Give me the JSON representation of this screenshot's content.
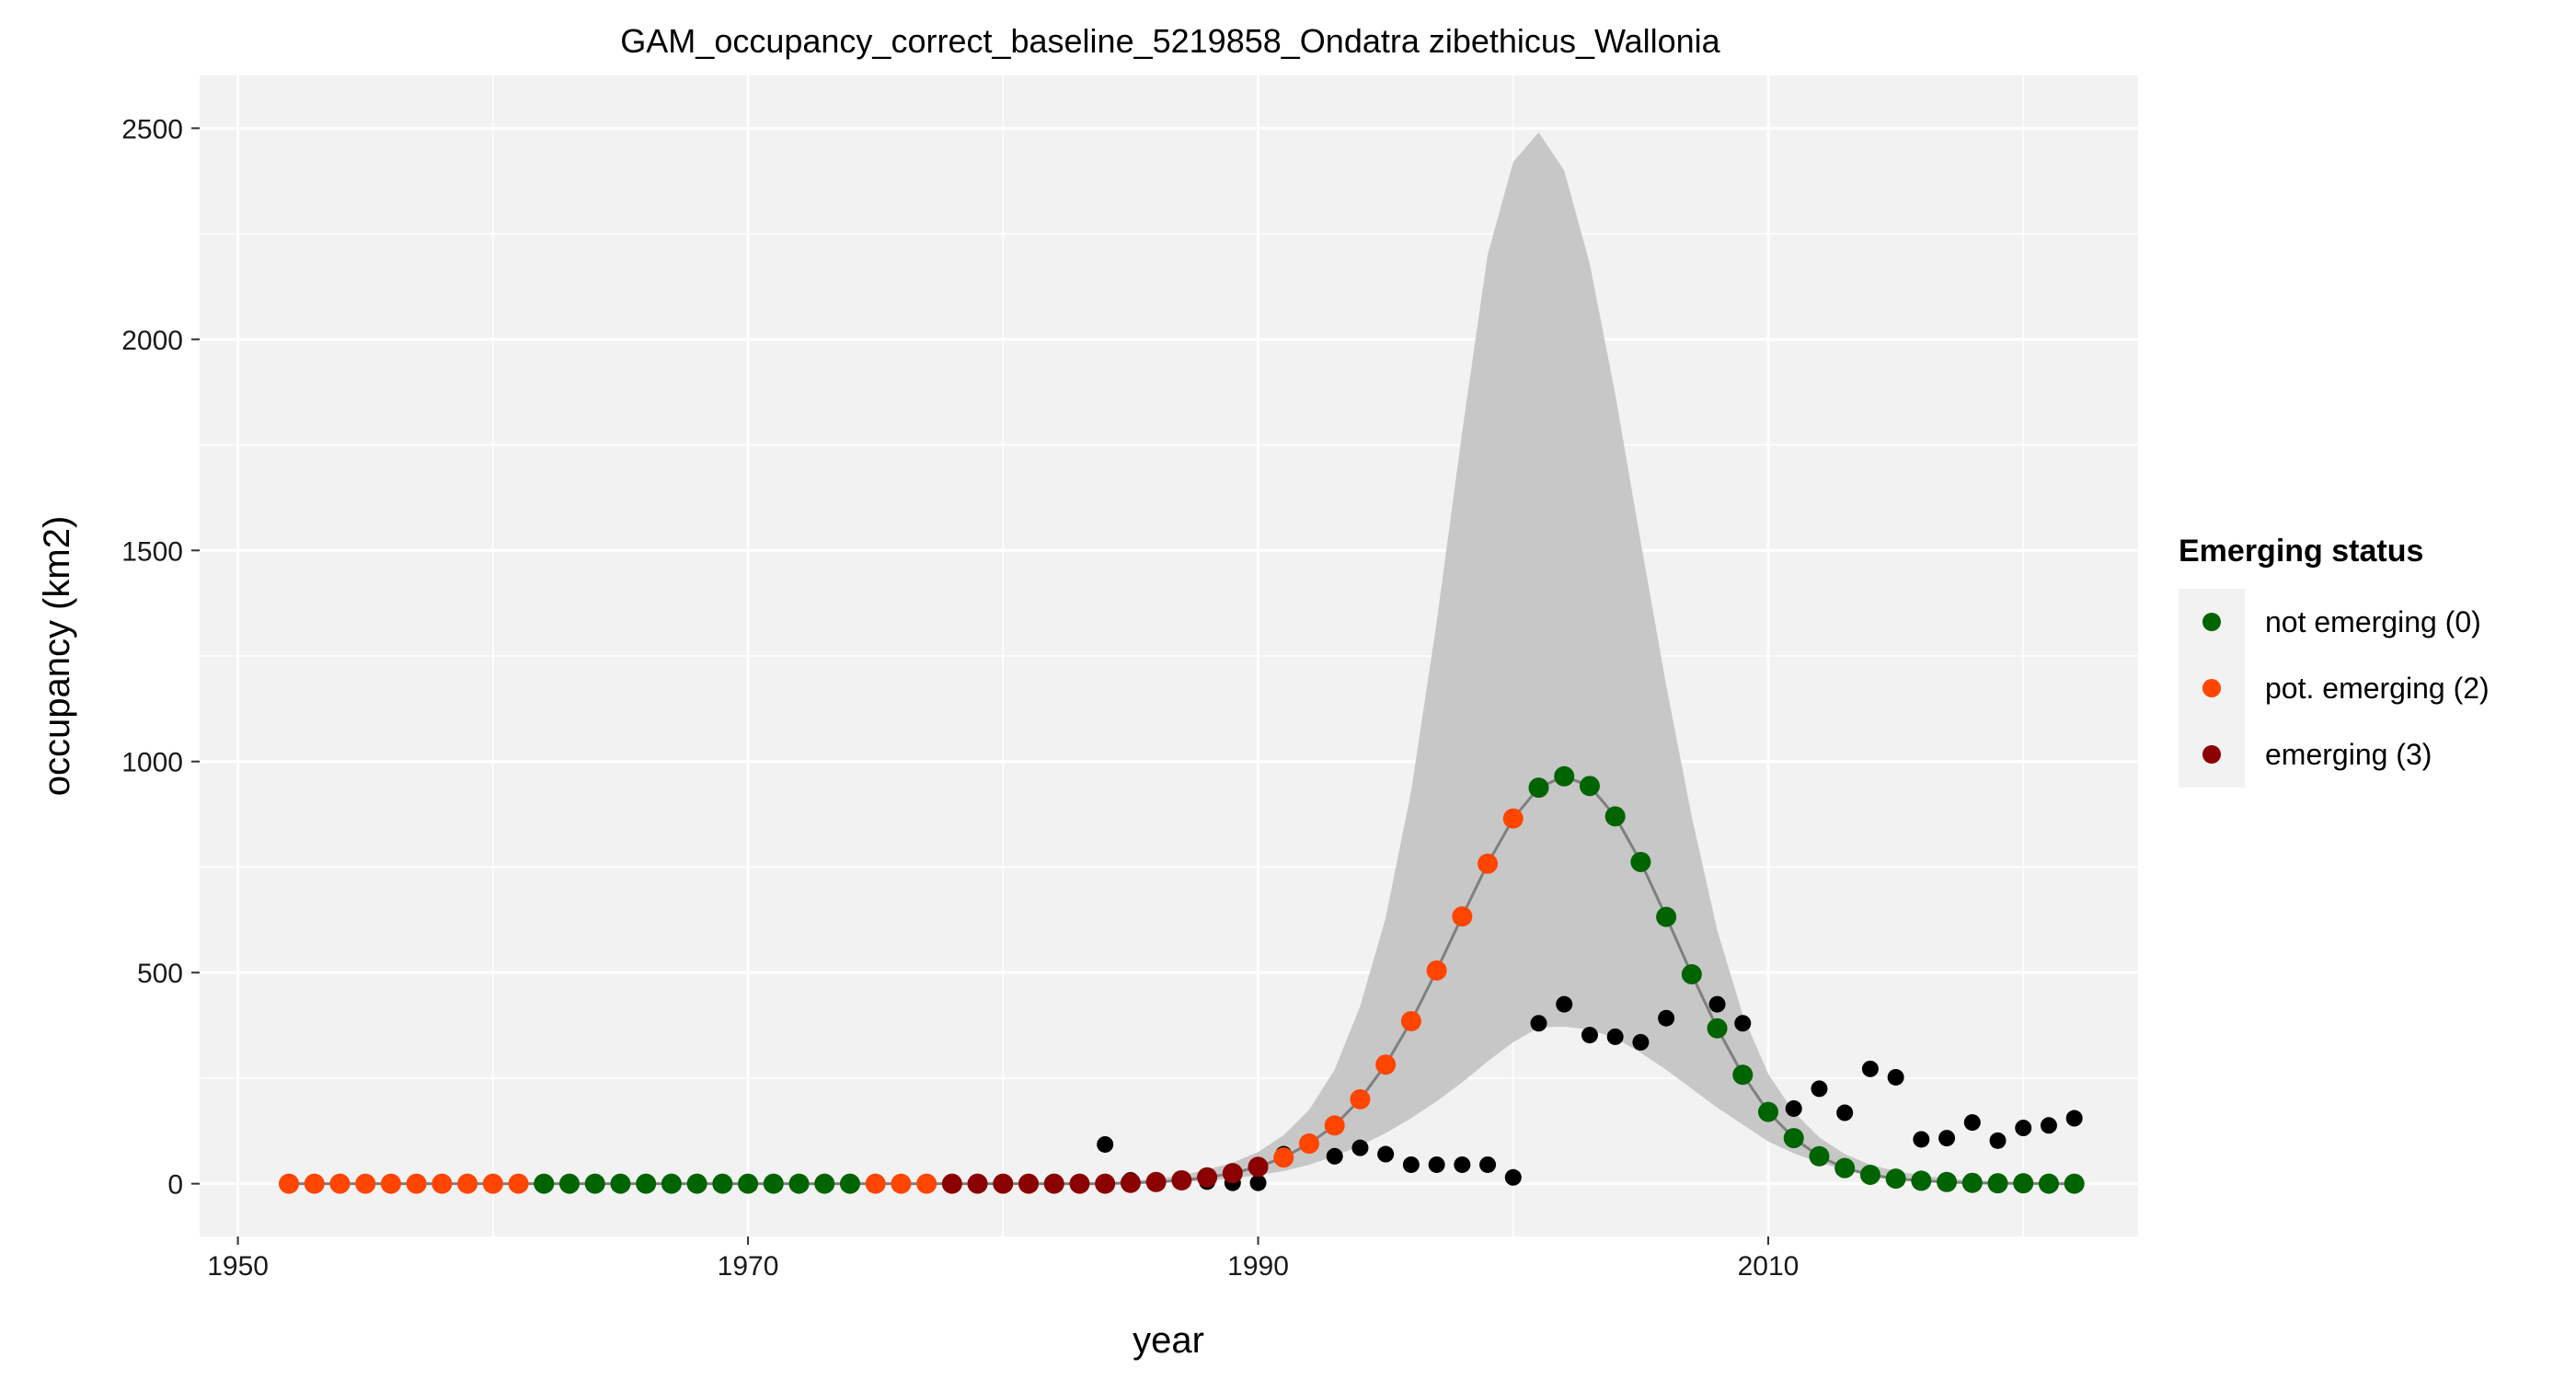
{
  "chart_data": {
    "type": "scatter",
    "title": "GAM_occupancy_correct_baseline_5219858_Ondatra zibethicus_Wallonia",
    "xlabel": "year",
    "ylabel": "occupancy (km2)",
    "xlim": [
      1948.5,
      2024.5
    ],
    "ylim": [
      -125,
      2625
    ],
    "x_ticks": [
      1950,
      1970,
      1990,
      2010
    ],
    "y_ticks": [
      0,
      500,
      1000,
      1500,
      2000,
      2500
    ],
    "grid": true,
    "background": "#f2f2f2",
    "legend": {
      "title": "Emerging status",
      "position": "right",
      "items": [
        {
          "label": "not emerging (0)",
          "color": "#006400",
          "key": "0"
        },
        {
          "label": "pot. emerging (2)",
          "color": "#ff4500",
          "key": "2"
        },
        {
          "label": "emerging (3)",
          "color": "#8b0000",
          "key": "3"
        }
      ]
    },
    "colors": {
      "not_emerging": "#006400",
      "pot_emerging": "#ff4500",
      "emerging": "#8b0000",
      "observed": "#000000",
      "ribbon": "#c4c4c4",
      "smooth_line": "#7f7f7f"
    },
    "gam_series": {
      "x": [
        1952,
        1953,
        1954,
        1955,
        1956,
        1957,
        1958,
        1959,
        1960,
        1961,
        1962,
        1963,
        1964,
        1965,
        1966,
        1967,
        1968,
        1969,
        1970,
        1971,
        1972,
        1973,
        1974,
        1975,
        1976,
        1977,
        1978,
        1979,
        1980,
        1981,
        1982,
        1983,
        1984,
        1985,
        1986,
        1987,
        1988,
        1989,
        1990,
        1991,
        1992,
        1993,
        1994,
        1995,
        1996,
        1997,
        1998,
        1999,
        2000,
        2001,
        2002,
        2003,
        2004,
        2005,
        2006,
        2007,
        2008,
        2009,
        2010,
        2011,
        2012,
        2013,
        2014,
        2015,
        2016,
        2017,
        2018,
        2019,
        2020,
        2021,
        2022
      ],
      "y": [
        0,
        0,
        0,
        0,
        0,
        0,
        0,
        0,
        0,
        0,
        0,
        0,
        0,
        0,
        0,
        0,
        0,
        0,
        0,
        0,
        0,
        0,
        0,
        0,
        0,
        0,
        0,
        0,
        0,
        0,
        0,
        0,
        0,
        2,
        4,
        8,
        15,
        25,
        40,
        62,
        95,
        138,
        200,
        282,
        385,
        505,
        633,
        758,
        865,
        938,
        965,
        942,
        870,
        762,
        632,
        496,
        368,
        258,
        170,
        108,
        65,
        37,
        21,
        12,
        7,
        4,
        2,
        1,
        1,
        0,
        0
      ],
      "status": [
        "2",
        "2",
        "2",
        "2",
        "2",
        "2",
        "2",
        "2",
        "2",
        "2",
        "0",
        "0",
        "0",
        "0",
        "0",
        "0",
        "0",
        "0",
        "0",
        "0",
        "0",
        "0",
        "0",
        "2",
        "2",
        "2",
        "3",
        "3",
        "3",
        "3",
        "3",
        "3",
        "3",
        "3",
        "3",
        "3",
        "3",
        "3",
        "3",
        "2",
        "2",
        "2",
        "2",
        "2",
        "2",
        "2",
        "2",
        "2",
        "2",
        "0",
        "0",
        "0",
        "0",
        "0",
        "0",
        "0",
        "0",
        "0",
        "0",
        "0",
        "0",
        "0",
        "0",
        "0",
        "0",
        "0",
        "0",
        "0",
        "0",
        "0",
        "0"
      ]
    },
    "ribbon": {
      "x": [
        1952,
        1953,
        1954,
        1955,
        1956,
        1957,
        1958,
        1959,
        1960,
        1961,
        1962,
        1963,
        1964,
        1965,
        1966,
        1967,
        1968,
        1969,
        1970,
        1971,
        1972,
        1973,
        1974,
        1975,
        1976,
        1977,
        1978,
        1979,
        1980,
        1981,
        1982,
        1983,
        1984,
        1985,
        1986,
        1987,
        1988,
        1989,
        1990,
        1991,
        1992,
        1993,
        1994,
        1995,
        1996,
        1997,
        1998,
        1999,
        2000,
        2001,
        2002,
        2003,
        2004,
        2005,
        2006,
        2007,
        2008,
        2009,
        2010,
        2011,
        2012,
        2013,
        2014,
        2015,
        2016,
        2017,
        2018,
        2019,
        2020,
        2021,
        2022
      ],
      "lower": [
        0,
        0,
        0,
        0,
        0,
        0,
        0,
        0,
        0,
        0,
        0,
        0,
        0,
        0,
        0,
        0,
        0,
        0,
        0,
        0,
        0,
        0,
        0,
        0,
        0,
        0,
        0,
        0,
        0,
        0,
        0,
        0,
        0,
        1,
        2,
        4,
        8,
        13,
        20,
        30,
        45,
        65,
        90,
        120,
        155,
        195,
        240,
        290,
        335,
        370,
        372,
        365,
        345,
        310,
        270,
        225,
        180,
        140,
        100,
        72,
        50,
        33,
        22,
        15,
        10,
        6,
        4,
        3,
        2,
        1,
        1
      ],
      "upper": [
        0,
        0,
        0,
        0,
        0,
        0,
        0,
        0,
        0,
        0,
        0,
        0,
        0,
        0,
        0,
        0,
        0,
        0,
        0,
        0,
        0,
        0,
        0,
        0,
        0,
        0,
        0,
        0,
        0,
        0,
        0,
        0,
        2,
        6,
        12,
        20,
        33,
        50,
        75,
        115,
        175,
        270,
        420,
        630,
        930,
        1330,
        1780,
        2200,
        2420,
        2490,
        2400,
        2180,
        1870,
        1520,
        1180,
        870,
        600,
        400,
        260,
        170,
        110,
        70,
        45,
        30,
        20,
        12,
        8,
        5,
        3,
        2,
        1
      ]
    },
    "observed": {
      "x": [
        1984,
        1985,
        1986,
        1987,
        1988,
        1989,
        1990,
        1991,
        1993,
        1994,
        1995,
        1996,
        1997,
        1998,
        1999,
        2000,
        2001,
        2002,
        2003,
        2004,
        2005,
        2006,
        2008,
        2009,
        2011,
        2012,
        2013,
        2014,
        2015,
        2016,
        2017,
        2018,
        2019,
        2020,
        2021,
        2022
      ],
      "y": [
        93,
        8,
        8,
        5,
        5,
        2,
        2,
        70,
        65,
        85,
        70,
        45,
        45,
        45,
        45,
        15,
        380,
        425,
        352,
        348,
        335,
        392,
        425,
        380,
        178,
        225,
        168,
        272,
        252,
        105,
        108,
        145,
        102,
        132,
        138,
        155
      ]
    }
  }
}
